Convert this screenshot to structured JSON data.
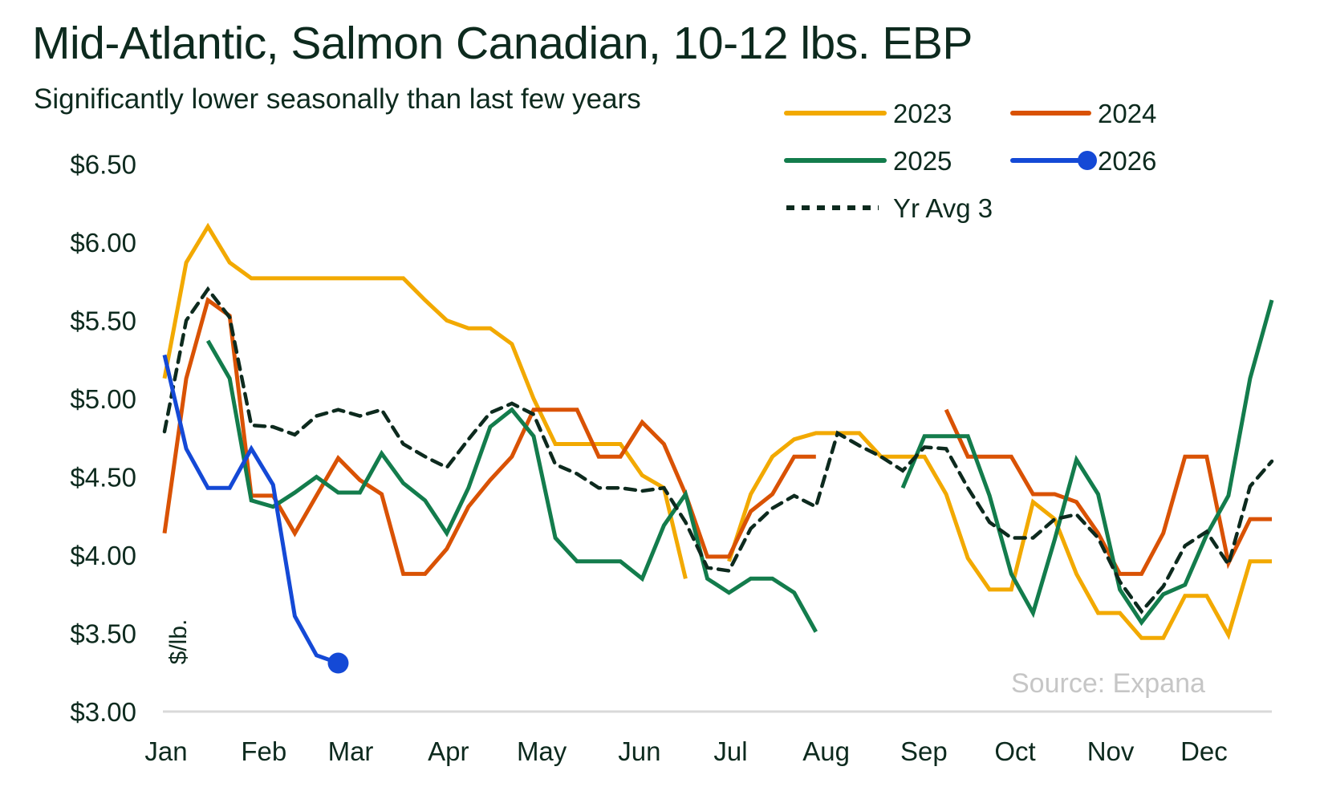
{
  "header": {
    "title": "Mid-Atlantic, Salmon Canadian, 10-12 lbs. EBP",
    "subtitle": "Significantly lower seasonally than last few years"
  },
  "source": "Source: Expana",
  "chart_data": {
    "type": "line",
    "title": "Mid-Atlantic, Salmon Canadian, 10-12 lbs. EBP",
    "subtitle": "Significantly lower seasonally than last few years",
    "xlabel": "",
    "ylabel": "$/lb.",
    "ylim": [
      3.0,
      6.5
    ],
    "yticks": [
      3.0,
      3.5,
      4.0,
      4.5,
      5.0,
      5.5,
      6.0,
      6.5
    ],
    "ytick_labels": [
      "$3.00",
      "$3.50",
      "$4.00",
      "$4.50",
      "$5.00",
      "$5.50",
      "$6.00",
      "$6.50"
    ],
    "x_points": 52,
    "x_unit": "week of year",
    "month_ticks": [
      {
        "label": "Jan",
        "week": 0
      },
      {
        "label": "Feb",
        "week": 4.5
      },
      {
        "label": "Mar",
        "week": 8.5
      },
      {
        "label": "Apr",
        "week": 13
      },
      {
        "label": "May",
        "week": 17.3
      },
      {
        "label": "Jun",
        "week": 21.8
      },
      {
        "label": "Jul",
        "week": 26
      },
      {
        "label": "Aug",
        "week": 30.4
      },
      {
        "label": "Sep",
        "week": 34.9
      },
      {
        "label": "Oct",
        "week": 39.1
      },
      {
        "label": "Nov",
        "week": 43.5
      },
      {
        "label": "Dec",
        "week": 47.8
      }
    ],
    "grid": false,
    "legend_position": "top-right",
    "series": [
      {
        "name": "2023",
        "color": "#f2a900",
        "style": "solid",
        "values": [
          5.13,
          5.87,
          6.1,
          5.87,
          5.77,
          5.77,
          5.77,
          5.77,
          5.77,
          5.77,
          5.77,
          5.77,
          5.63,
          5.5,
          5.45,
          5.45,
          5.35,
          5.0,
          4.71,
          4.71,
          4.71,
          4.71,
          4.51,
          4.43,
          3.85,
          null,
          3.96,
          4.39,
          4.63,
          4.74,
          4.78,
          4.78,
          4.78,
          4.63,
          4.63,
          4.63,
          4.39,
          3.98,
          3.78,
          3.78,
          4.34,
          4.23,
          3.88,
          3.63,
          3.63,
          3.47,
          3.47,
          3.74,
          3.74,
          3.49,
          3.96,
          3.96
        ]
      },
      {
        "name": "2024",
        "color": "#d95204",
        "style": "solid",
        "values": [
          4.14,
          5.13,
          5.63,
          5.53,
          4.38,
          4.38,
          4.14,
          4.38,
          4.62,
          4.48,
          4.39,
          3.88,
          3.88,
          4.04,
          4.31,
          4.48,
          4.63,
          4.93,
          4.93,
          4.93,
          4.63,
          4.63,
          4.85,
          4.71,
          4.39,
          3.99,
          3.99,
          4.28,
          4.39,
          4.63,
          4.63,
          null,
          null,
          null,
          null,
          null,
          4.93,
          4.63,
          4.63,
          4.63,
          4.39,
          4.39,
          4.34,
          4.14,
          3.88,
          3.88,
          4.14,
          4.63,
          4.63,
          3.95,
          4.23,
          4.23
        ]
      },
      {
        "name": "2025",
        "color": "#137c4c",
        "style": "solid",
        "values": [
          null,
          null,
          5.37,
          5.13,
          4.35,
          4.31,
          4.4,
          4.5,
          4.4,
          4.4,
          4.65,
          4.46,
          4.35,
          4.14,
          4.43,
          4.82,
          4.93,
          4.76,
          4.11,
          3.96,
          3.96,
          3.96,
          3.85,
          4.19,
          4.39,
          3.85,
          3.76,
          3.85,
          3.85,
          3.76,
          3.51,
          null,
          null,
          null,
          4.43,
          4.76,
          4.76,
          4.76,
          4.38,
          3.88,
          3.63,
          4.1,
          4.61,
          4.39,
          3.78,
          3.57,
          3.75,
          3.81,
          4.13,
          4.38,
          5.13,
          5.63
        ]
      },
      {
        "name": "2026",
        "color": "#1449d6",
        "style": "solid",
        "end_marker": true,
        "values": [
          5.28,
          4.68,
          4.43,
          4.43,
          4.68,
          4.45,
          3.61,
          3.36,
          3.31
        ]
      },
      {
        "name": "Yr Avg 3",
        "color": "#0d2a1e",
        "style": "dashed",
        "values": [
          4.79,
          5.5,
          5.7,
          5.52,
          4.83,
          4.82,
          4.77,
          4.89,
          4.93,
          4.89,
          4.93,
          4.71,
          4.63,
          4.56,
          4.74,
          4.91,
          4.97,
          4.9,
          4.58,
          4.52,
          4.43,
          4.43,
          4.41,
          4.43,
          4.21,
          3.92,
          3.9,
          4.17,
          4.3,
          4.38,
          4.31,
          4.78,
          4.7,
          4.63,
          4.54,
          4.69,
          4.68,
          4.43,
          4.21,
          4.11,
          4.11,
          4.23,
          4.26,
          4.11,
          3.83,
          3.64,
          3.8,
          4.06,
          4.15,
          3.94,
          4.44,
          4.6
        ]
      }
    ]
  }
}
